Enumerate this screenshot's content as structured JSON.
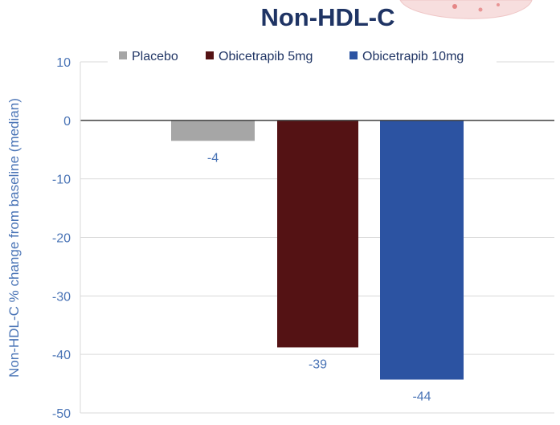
{
  "chart_data": {
    "type": "bar",
    "title": "Non-HDL-C",
    "xlabel": "",
    "ylabel": "Non-HDL-C % change from baseline (median)",
    "ylim": [
      -50,
      10
    ],
    "yticks": [
      10,
      0,
      -10,
      -20,
      -30,
      -40,
      -50
    ],
    "grid": true,
    "legend_position": "top",
    "series": [
      {
        "name": "Placebo",
        "value": -3.5,
        "label": "-4",
        "color": "#a6a6a6"
      },
      {
        "name": "Obicetrapib 5mg",
        "value": -38.8,
        "label": "-39",
        "color": "#541214"
      },
      {
        "name": "Obicetrapib 10mg",
        "value": -44.3,
        "label": "-44",
        "color": "#2c53a2"
      }
    ],
    "colors": {
      "title": "#1f3464",
      "tick_labels": "#4a74b6",
      "axis_title": "#4a74b6",
      "data_labels": "#4a74b6",
      "legend_text": "#1f3464",
      "gridline": "#d9d9d9",
      "zero_line": "#3f3f3f"
    }
  }
}
